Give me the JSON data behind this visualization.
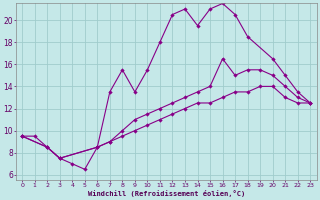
{
  "xlabel": "Windchill (Refroidissement éolien,°C)",
  "bg_color": "#c5e8e8",
  "grid_color": "#a0cccc",
  "line_color": "#880088",
  "xlim": [
    -0.5,
    23.5
  ],
  "ylim": [
    5.5,
    21.5
  ],
  "xticks": [
    0,
    1,
    2,
    3,
    4,
    5,
    6,
    7,
    8,
    9,
    10,
    11,
    12,
    13,
    14,
    15,
    16,
    17,
    18,
    19,
    20,
    21,
    22,
    23
  ],
  "yticks": [
    6,
    8,
    10,
    12,
    14,
    16,
    18,
    20
  ],
  "line1_x": [
    0,
    1,
    2,
    3,
    4,
    5,
    6,
    7,
    8,
    9,
    10,
    11,
    12,
    13,
    14,
    15,
    16,
    17,
    18,
    20,
    21,
    22,
    23
  ],
  "line1_y": [
    9.5,
    9.5,
    8.5,
    7.5,
    7.0,
    6.5,
    8.5,
    13.5,
    15.5,
    13.5,
    15.5,
    18.0,
    20.5,
    21.0,
    19.5,
    21.0,
    21.5,
    20.5,
    18.5,
    16.5,
    15.0,
    13.5,
    12.5
  ],
  "line2_x": [
    0,
    2,
    3,
    6,
    7,
    8,
    9,
    10,
    11,
    12,
    13,
    14,
    15,
    16,
    17,
    18,
    19,
    20,
    21,
    22,
    23
  ],
  "line2_y": [
    9.5,
    8.5,
    7.5,
    8.5,
    9.0,
    10.0,
    11.0,
    11.5,
    12.0,
    12.5,
    13.0,
    13.5,
    14.0,
    16.5,
    15.0,
    15.5,
    15.5,
    15.0,
    14.0,
    13.0,
    12.5
  ],
  "line3_x": [
    0,
    2,
    3,
    6,
    7,
    8,
    9,
    10,
    11,
    12,
    13,
    14,
    15,
    16,
    17,
    18,
    19,
    20,
    21,
    22,
    23
  ],
  "line3_y": [
    9.5,
    8.5,
    7.5,
    8.5,
    9.0,
    9.5,
    10.0,
    10.5,
    11.0,
    11.5,
    12.0,
    12.5,
    12.5,
    13.0,
    13.5,
    13.5,
    14.0,
    14.0,
    13.0,
    12.5,
    12.5
  ]
}
